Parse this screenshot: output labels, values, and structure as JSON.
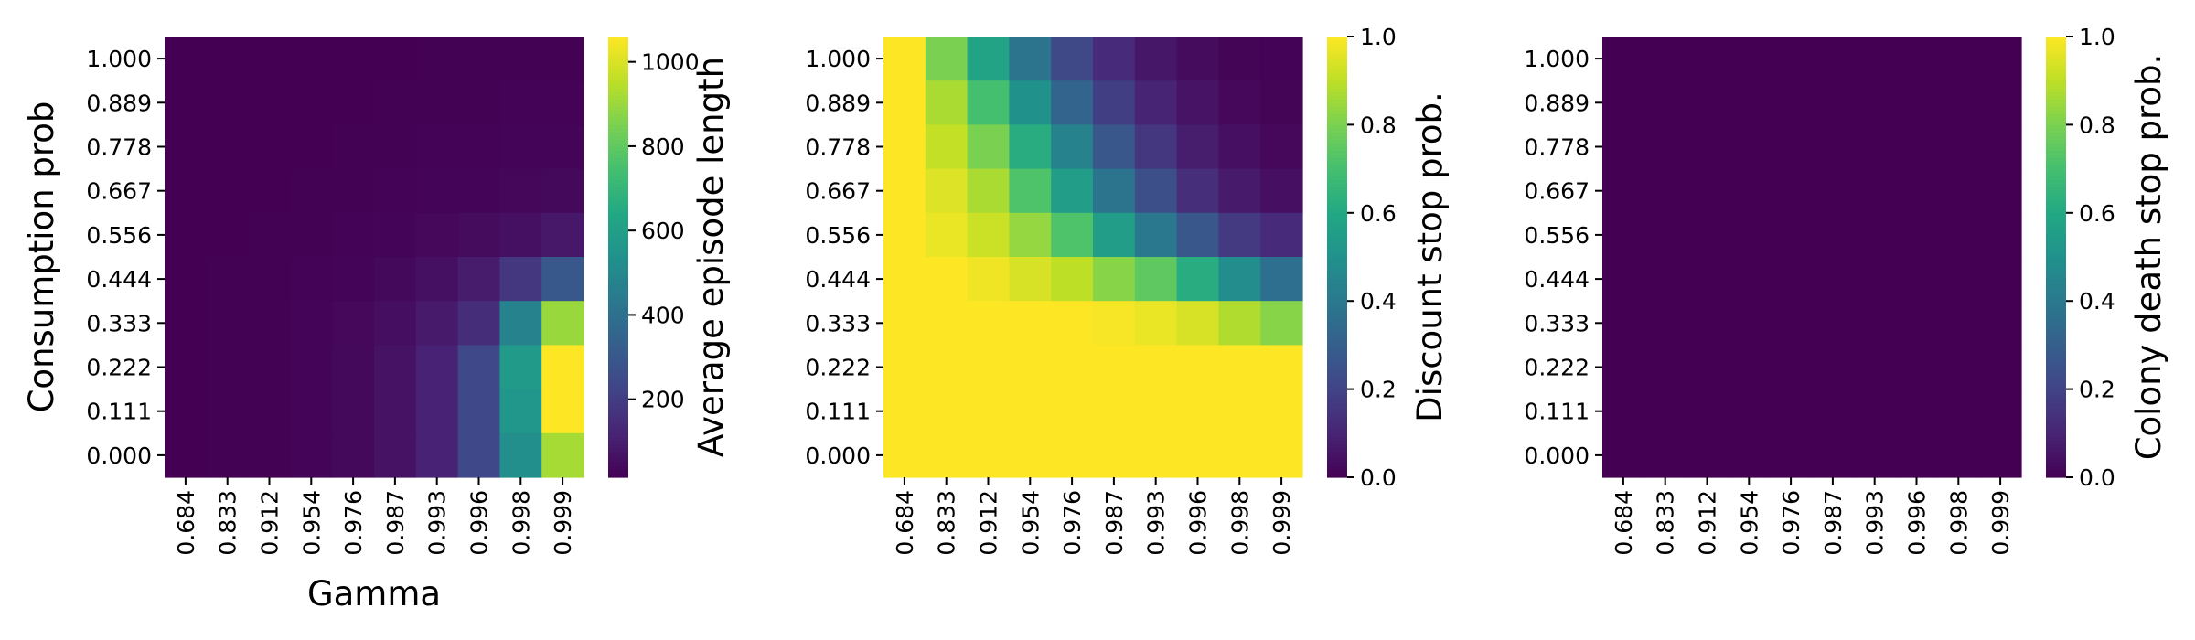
{
  "chart_data": [
    {
      "type": "heatmap",
      "xlabel": "Gamma",
      "ylabel": "Consumption prob",
      "x_ticks": [
        "0.684",
        "0.833",
        "0.912",
        "0.954",
        "0.976",
        "0.987",
        "0.993",
        "0.996",
        "0.998",
        "0.999"
      ],
      "y_ticks": [
        "0.000",
        "0.111",
        "0.222",
        "0.333",
        "0.444",
        "0.556",
        "0.667",
        "0.778",
        "0.889",
        "1.000"
      ],
      "colorbar_label": "Average episode length",
      "colorbar_ticks": [
        200,
        400,
        600,
        800,
        1000
      ],
      "vmin": 15,
      "vmax": 1060,
      "colormap": "viridis",
      "values_rows_y_top_to_bottom": [
        [
          15,
          15,
          15,
          15,
          16,
          16,
          17,
          17,
          18,
          19
        ],
        [
          15,
          15,
          15,
          16,
          16,
          17,
          18,
          19,
          20,
          22
        ],
        [
          15,
          15,
          16,
          16,
          17,
          18,
          20,
          22,
          25,
          28
        ],
        [
          15,
          16,
          16,
          17,
          19,
          21,
          24,
          28,
          33,
          40
        ],
        [
          16,
          16,
          17,
          19,
          22,
          27,
          35,
          45,
          60,
          85
        ],
        [
          16,
          17,
          18,
          21,
          28,
          40,
          60,
          95,
          180,
          300
        ],
        [
          16,
          17,
          19,
          24,
          35,
          55,
          90,
          150,
          480,
          900
        ],
        [
          16,
          17,
          19,
          24,
          38,
          65,
          115,
          240,
          580,
          1060
        ],
        [
          16,
          17,
          19,
          24,
          38,
          65,
          115,
          240,
          560,
          1060
        ],
        [
          16,
          17,
          19,
          24,
          38,
          65,
          115,
          240,
          530,
          920
        ]
      ]
    },
    {
      "type": "heatmap",
      "xlabel": "",
      "ylabel": "",
      "x_ticks": [
        "0.684",
        "0.833",
        "0.912",
        "0.954",
        "0.976",
        "0.987",
        "0.993",
        "0.996",
        "0.998",
        "0.999"
      ],
      "y_ticks": [
        "0.000",
        "0.111",
        "0.222",
        "0.333",
        "0.444",
        "0.556",
        "0.667",
        "0.778",
        "0.889",
        "1.000"
      ],
      "colorbar_label": "Discount stop prob.",
      "colorbar_ticks": [
        "0.0",
        "0.2",
        "0.4",
        "0.6",
        "0.8",
        "1.0"
      ],
      "vmin": 0,
      "vmax": 1,
      "colormap": "viridis",
      "values_rows_y_top_to_bottom": [
        [
          1.0,
          0.8,
          0.58,
          0.38,
          0.22,
          0.12,
          0.06,
          0.03,
          0.01,
          0.005
        ],
        [
          1.0,
          0.87,
          0.7,
          0.5,
          0.32,
          0.18,
          0.1,
          0.05,
          0.02,
          0.01
        ],
        [
          1.0,
          0.91,
          0.8,
          0.62,
          0.44,
          0.27,
          0.16,
          0.08,
          0.04,
          0.02
        ],
        [
          1.0,
          0.95,
          0.87,
          0.72,
          0.55,
          0.38,
          0.24,
          0.13,
          0.07,
          0.04
        ],
        [
          1.0,
          0.97,
          0.92,
          0.84,
          0.72,
          0.55,
          0.4,
          0.27,
          0.17,
          0.12
        ],
        [
          1.0,
          1.0,
          0.98,
          0.94,
          0.9,
          0.82,
          0.75,
          0.62,
          0.48,
          0.36
        ],
        [
          1.0,
          1.0,
          1.0,
          1.0,
          1.0,
          0.99,
          0.97,
          0.94,
          0.88,
          0.82
        ],
        [
          1.0,
          1.0,
          1.0,
          1.0,
          1.0,
          1.0,
          1.0,
          1.0,
          1.0,
          1.0
        ],
        [
          1.0,
          1.0,
          1.0,
          1.0,
          1.0,
          1.0,
          1.0,
          1.0,
          1.0,
          1.0
        ],
        [
          1.0,
          1.0,
          1.0,
          1.0,
          1.0,
          1.0,
          1.0,
          1.0,
          1.0,
          1.0
        ]
      ]
    },
    {
      "type": "heatmap",
      "xlabel": "",
      "ylabel": "",
      "x_ticks": [
        "0.684",
        "0.833",
        "0.912",
        "0.954",
        "0.976",
        "0.987",
        "0.993",
        "0.996",
        "0.998",
        "0.999"
      ],
      "y_ticks": [
        "0.000",
        "0.111",
        "0.222",
        "0.333",
        "0.444",
        "0.556",
        "0.667",
        "0.778",
        "0.889",
        "1.000"
      ],
      "colorbar_label": "Colony death stop prob.",
      "colorbar_ticks": [
        "0.0",
        "0.2",
        "0.4",
        "0.6",
        "0.8",
        "1.0"
      ],
      "vmin": 0,
      "vmax": 1,
      "colormap": "viridis",
      "values_rows_y_top_to_bottom": [
        [
          0,
          0,
          0,
          0,
          0,
          0,
          0,
          0,
          0,
          0
        ],
        [
          0,
          0,
          0,
          0,
          0,
          0,
          0,
          0,
          0,
          0
        ],
        [
          0,
          0,
          0,
          0,
          0,
          0,
          0,
          0,
          0,
          0
        ],
        [
          0,
          0,
          0,
          0,
          0,
          0,
          0,
          0,
          0,
          0
        ],
        [
          0,
          0,
          0,
          0,
          0,
          0,
          0,
          0,
          0,
          0
        ],
        [
          0,
          0,
          0,
          0,
          0,
          0,
          0,
          0,
          0,
          0
        ],
        [
          0,
          0,
          0,
          0,
          0,
          0,
          0,
          0,
          0,
          0
        ],
        [
          0,
          0,
          0,
          0,
          0,
          0,
          0,
          0,
          0,
          0
        ],
        [
          0,
          0,
          0,
          0,
          0,
          0,
          0,
          0,
          0,
          0
        ],
        [
          0,
          0,
          0,
          0,
          0,
          0,
          0,
          0,
          0,
          0
        ]
      ]
    }
  ]
}
